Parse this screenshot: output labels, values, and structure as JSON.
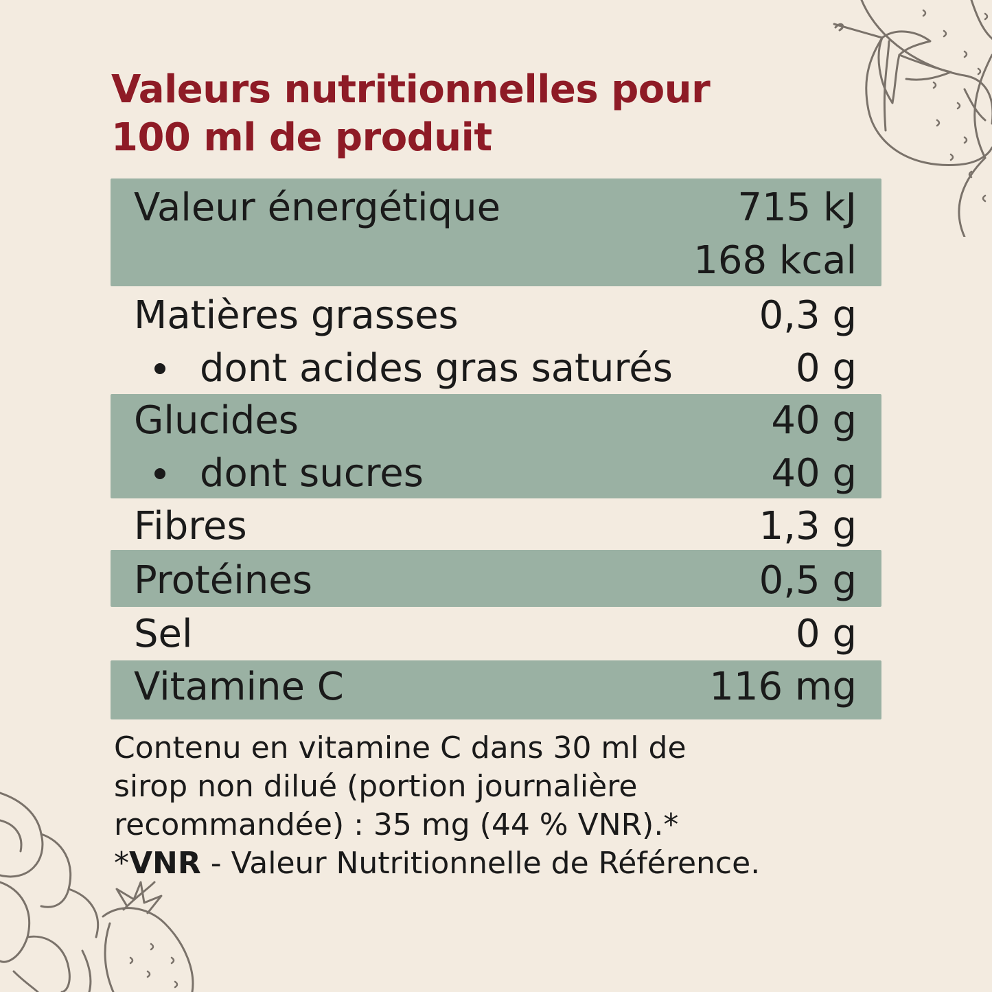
{
  "title": {
    "line1": "Valeurs nutritionnelles pour",
    "line2": "100 ml de produit"
  },
  "rows": [
    {
      "label": "Valeur énergétique",
      "value": "715 kJ",
      "value2": "168 kcal"
    },
    {
      "label": "Matières grasses",
      "value": "0,3 g"
    },
    {
      "label": "dont acides gras saturés",
      "value": "0 g"
    },
    {
      "label": "Glucides",
      "value": "40 g"
    },
    {
      "label": "dont sucres",
      "value": "40 g"
    },
    {
      "label": "Fibres",
      "value": "1,3 g"
    },
    {
      "label": "Protéines",
      "value": "0,5 g"
    },
    {
      "label": "Sel",
      "value": "0 g"
    },
    {
      "label": "Vitamine C",
      "value": "116 mg"
    }
  ],
  "footnote": {
    "line1": "Contenu en vitamine C dans 30 ml de",
    "line2": "sirop non dilué (portion journalière",
    "line3": "recommandée) : 35 mg (44 % VNR).*",
    "line4_prefix": "*",
    "line4_bold": "VNR",
    "line4_rest": " - Valeur Nutritionnelle de Référence."
  },
  "colors": {
    "background": "#f3ebe0",
    "title": "#8e1b26",
    "shaded_row": "#9ab1a3",
    "text": "#1a1a1a",
    "illustration": "#7a726a"
  },
  "icons": [
    "strawberry-illustration",
    "strawberry-flower-illustration",
    "bullet-dot"
  ]
}
